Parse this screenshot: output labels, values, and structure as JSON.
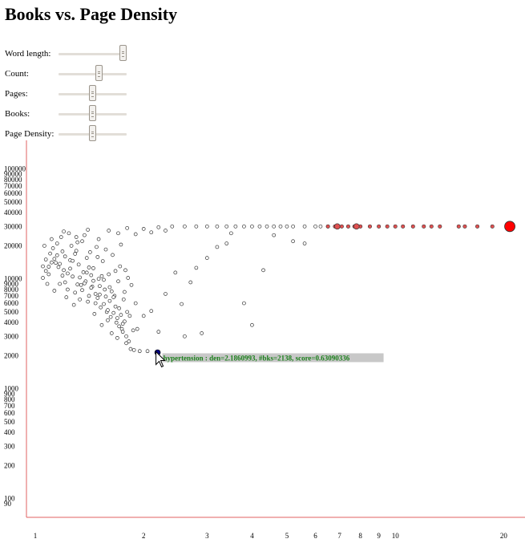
{
  "title": "Books vs. Page Density",
  "sliders": [
    {
      "label": "Word length:",
      "value": 1.0
    },
    {
      "label": "Count:",
      "value": 0.6
    },
    {
      "label": "Pages:",
      "value": 0.5
    },
    {
      "label": "Books:",
      "value": 0.5
    },
    {
      "label": "Page Density:",
      "value": 0.5
    }
  ],
  "colors": {
    "axis": "#e06060",
    "point_stroke": "#333333",
    "highlight_fill": "#e05050",
    "big_point": "#ff0000",
    "selected": "#000080",
    "tooltip_text": "#1a7f1a"
  },
  "chart_data": {
    "type": "scatter",
    "title": "Books vs. Page Density",
    "x_scale": "log",
    "y_scale": "log",
    "xlim": [
      1,
      22
    ],
    "ylim": [
      80,
      110000
    ],
    "x_ticks": [
      1,
      2,
      3,
      4,
      5,
      6,
      7,
      8,
      9,
      10,
      20
    ],
    "y_ticks": [
      90,
      100,
      200,
      300,
      400,
      500,
      600,
      700,
      800,
      900,
      1000,
      2000,
      3000,
      4000,
      5000,
      6000,
      7000,
      8000,
      9000,
      10000,
      20000,
      30000,
      40000,
      50000,
      60000,
      70000,
      80000,
      90000,
      100000
    ],
    "grid": false,
    "plain_points": [
      [
        1.05,
        13000
      ],
      [
        1.07,
        15000
      ],
      [
        1.09,
        11000
      ],
      [
        1.1,
        17000
      ],
      [
        1.12,
        19000
      ],
      [
        1.14,
        14000
      ],
      [
        1.15,
        21000
      ],
      [
        1.17,
        9000
      ],
      [
        1.18,
        24000
      ],
      [
        1.2,
        12000
      ],
      [
        1.21,
        16000
      ],
      [
        1.23,
        8000
      ],
      [
        1.24,
        26000
      ],
      [
        1.26,
        20000
      ],
      [
        1.27,
        10500
      ],
      [
        1.29,
        7500
      ],
      [
        1.3,
        18000
      ],
      [
        1.32,
        13500
      ],
      [
        1.33,
        6500
      ],
      [
        1.35,
        22000
      ],
      [
        1.36,
        11500
      ],
      [
        1.38,
        9500
      ],
      [
        1.39,
        15500
      ],
      [
        1.41,
        7000
      ],
      [
        1.42,
        17500
      ],
      [
        1.44,
        8500
      ],
      [
        1.45,
        12500
      ],
      [
        1.47,
        6000
      ],
      [
        1.48,
        19500
      ],
      [
        1.5,
        10000
      ],
      [
        1.52,
        5500
      ],
      [
        1.54,
        14500
      ],
      [
        1.56,
        8000
      ],
      [
        1.58,
        5000
      ],
      [
        1.6,
        11000
      ],
      [
        1.62,
        4500
      ],
      [
        1.64,
        16500
      ],
      [
        1.66,
        7000
      ],
      [
        1.68,
        4000
      ],
      [
        1.7,
        9500
      ],
      [
        1.72,
        13000
      ],
      [
        1.74,
        3500
      ],
      [
        1.76,
        6500
      ],
      [
        1.78,
        12000
      ],
      [
        1.8,
        5000
      ],
      [
        1.06,
        20000
      ],
      [
        1.08,
        9000
      ],
      [
        1.11,
        23000
      ],
      [
        1.13,
        7800
      ],
      [
        1.16,
        12800
      ],
      [
        1.19,
        17800
      ],
      [
        1.22,
        6800
      ],
      [
        1.25,
        14800
      ],
      [
        1.28,
        5800
      ],
      [
        1.31,
        21500
      ],
      [
        1.34,
        8800
      ],
      [
        1.37,
        25000
      ],
      [
        1.4,
        6200
      ],
      [
        1.43,
        10800
      ],
      [
        1.46,
        4800
      ],
      [
        1.49,
        15800
      ],
      [
        1.51,
        7200
      ],
      [
        1.53,
        3800
      ],
      [
        1.55,
        9800
      ],
      [
        1.57,
        18500
      ],
      [
        1.59,
        4200
      ],
      [
        1.61,
        8400
      ],
      [
        1.63,
        3200
      ],
      [
        1.65,
        6800
      ],
      [
        1.67,
        11800
      ],
      [
        1.69,
        2900
      ],
      [
        1.71,
        5400
      ],
      [
        1.73,
        20500
      ],
      [
        1.75,
        3900
      ],
      [
        1.77,
        7600
      ],
      [
        1.79,
        2600
      ],
      [
        1.81,
        10200
      ],
      [
        1.83,
        4600
      ],
      [
        1.85,
        8800
      ],
      [
        1.87,
        3400
      ],
      [
        1.9,
        6000
      ],
      [
        1.05,
        10200
      ],
      [
        1.07,
        11800
      ],
      [
        1.09,
        12900
      ],
      [
        1.11,
        14100
      ],
      [
        1.13,
        15200
      ],
      [
        1.15,
        16400
      ],
      [
        1.17,
        13700
      ],
      [
        1.19,
        10700
      ],
      [
        1.21,
        9300
      ],
      [
        1.23,
        11200
      ],
      [
        1.25,
        12400
      ],
      [
        1.27,
        14600
      ],
      [
        1.29,
        16900
      ],
      [
        1.31,
        8900
      ],
      [
        1.33,
        10300
      ],
      [
        1.35,
        7900
      ],
      [
        1.37,
        9100
      ],
      [
        1.39,
        11400
      ],
      [
        1.41,
        12700
      ],
      [
        1.43,
        8300
      ],
      [
        1.45,
        9600
      ],
      [
        1.47,
        7300
      ],
      [
        1.49,
        6700
      ],
      [
        1.51,
        8600
      ],
      [
        1.53,
        10600
      ],
      [
        1.55,
        5900
      ],
      [
        1.57,
        6900
      ],
      [
        1.59,
        5200
      ],
      [
        1.61,
        6300
      ],
      [
        1.63,
        7700
      ],
      [
        1.65,
        4900
      ],
      [
        1.67,
        5600
      ],
      [
        1.69,
        4400
      ],
      [
        1.71,
        3700
      ],
      [
        1.73,
        4700
      ],
      [
        1.75,
        3300
      ],
      [
        1.77,
        4100
      ],
      [
        1.79,
        3000
      ],
      [
        1.82,
        2700
      ],
      [
        1.84,
        2300
      ],
      [
        1.88,
        2250
      ],
      [
        1.95,
        2200
      ],
      [
        2.05,
        2200
      ],
      [
        1.92,
        3500
      ],
      [
        2.0,
        4600
      ],
      [
        2.1,
        5100
      ],
      [
        2.2,
        3300
      ],
      [
        2.3,
        7300
      ],
      [
        2.45,
        11400
      ],
      [
        2.55,
        5900
      ],
      [
        2.6,
        3000
      ],
      [
        2.7,
        9300
      ],
      [
        2.8,
        12600
      ],
      [
        2.9,
        3200
      ],
      [
        3.0,
        15500
      ],
      [
        3.2,
        19500
      ],
      [
        3.4,
        21000
      ],
      [
        3.5,
        26000
      ],
      [
        3.8,
        6000
      ],
      [
        4.0,
        3800
      ],
      [
        4.3,
        12000
      ],
      [
        4.6,
        25000
      ],
      [
        5.2,
        22000
      ],
      [
        5.6,
        21000
      ],
      [
        1.2,
        27000
      ],
      [
        1.4,
        28000
      ],
      [
        1.6,
        27500
      ],
      [
        1.8,
        29000
      ],
      [
        2.0,
        28500
      ],
      [
        2.2,
        29500
      ],
      [
        2.4,
        30000
      ],
      [
        2.6,
        30000
      ],
      [
        2.8,
        30000
      ],
      [
        3.0,
        30000
      ],
      [
        3.2,
        30000
      ],
      [
        3.4,
        30000
      ],
      [
        3.6,
        30000
      ],
      [
        3.8,
        30000
      ],
      [
        4.0,
        30000
      ],
      [
        4.2,
        30000
      ],
      [
        4.4,
        30000
      ],
      [
        4.6,
        30000
      ],
      [
        4.8,
        30000
      ],
      [
        5.0,
        30000
      ],
      [
        5.2,
        30000
      ],
      [
        5.6,
        30000
      ],
      [
        6.0,
        30000
      ],
      [
        6.2,
        30000
      ],
      [
        6.5,
        30000
      ],
      [
        1.3,
        24000
      ],
      [
        1.5,
        23000
      ],
      [
        1.7,
        26000
      ],
      [
        1.9,
        25500
      ],
      [
        2.1,
        26500
      ],
      [
        2.3,
        27500
      ]
    ],
    "highlighted_points": [
      [
        6.5,
        30000
      ],
      [
        6.8,
        30000
      ],
      [
        7.1,
        30000
      ],
      [
        7.4,
        30000
      ],
      [
        7.7,
        30000
      ],
      [
        8.0,
        30000
      ],
      [
        8.5,
        30000
      ],
      [
        9.0,
        30000
      ],
      [
        9.5,
        30000
      ],
      [
        10.0,
        30000
      ],
      [
        10.5,
        30000
      ],
      [
        11.2,
        30000
      ],
      [
        12.0,
        30000
      ],
      [
        12.6,
        30000
      ],
      [
        13.3,
        30000
      ],
      [
        15.0,
        30000
      ],
      [
        15.6,
        30000
      ],
      [
        16.9,
        30000
      ],
      [
        18.6,
        30000
      ]
    ],
    "large_point": [
      [
        20.8,
        30000
      ]
    ],
    "big_highlight_points": [
      [
        6.9,
        30000
      ],
      [
        7.8,
        30000
      ]
    ],
    "selected_point": {
      "x": 2.1860993,
      "y": 2138,
      "label": "hypertension : den=2.1860993, #bks=2138, score=0.63090336"
    }
  }
}
